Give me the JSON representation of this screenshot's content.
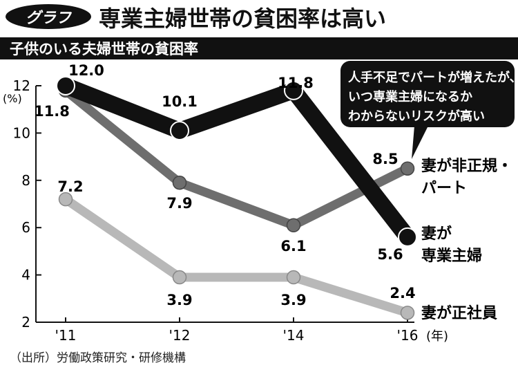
{
  "header": {
    "badge": "グラフ",
    "title": "専業主婦世帯の貧困率は高い",
    "subtitle": "子供のいる夫婦世帯の貧困率"
  },
  "source": "（出所）労働政策研究・研修機構",
  "callout": [
    "人手不足でパートが増えたが、",
    "いつ専業主婦になるか",
    "わからないリスクが高い"
  ],
  "chart_data": {
    "type": "line",
    "x": [
      "'11",
      "'12",
      "'14",
      "'16"
    ],
    "x_unit": "(年)",
    "y_unit": "(%)",
    "ylim": [
      2,
      12
    ],
    "yticks": [
      2,
      4,
      6,
      8,
      10,
      12
    ],
    "grid": false,
    "series": [
      {
        "name": "妻が専業主婦",
        "label_lines": [
          "妻が",
          "専業主婦"
        ],
        "values": [
          12.0,
          10.1,
          11.8,
          5.6
        ],
        "labels": [
          "12.0",
          "10.1",
          "11.8",
          "5.6"
        ],
        "color": "#111111"
      },
      {
        "name": "妻が非正規・パート",
        "label_lines": [
          "妻が非正規・",
          "パート"
        ],
        "values": [
          11.8,
          7.9,
          6.1,
          8.5
        ],
        "labels": [
          "11.8",
          "7.9",
          "6.1",
          "8.5"
        ],
        "color": "#6e6e6e"
      },
      {
        "name": "妻が正社員",
        "label_lines": [
          "妻が正社員"
        ],
        "values": [
          7.2,
          3.9,
          3.9,
          2.4
        ],
        "labels": [
          "7.2",
          "3.9",
          "3.9",
          "2.4"
        ],
        "color": "#b8b8b8"
      }
    ]
  }
}
